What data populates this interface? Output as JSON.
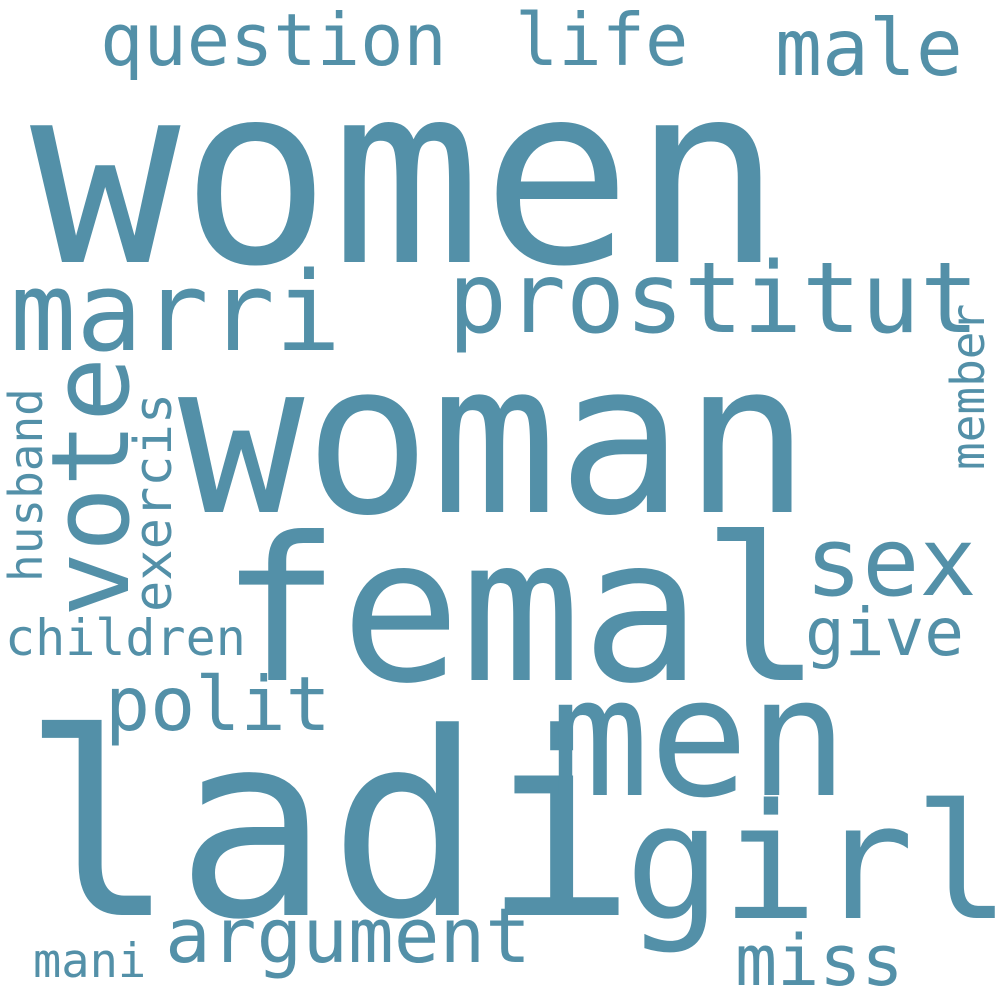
{
  "word_cloud": {
    "color": "#5390a8",
    "background": "#ffffff",
    "words": [
      "women",
      "woman",
      "ladi",
      "femal",
      "men",
      "girl",
      "marri",
      "vote",
      "prostitut",
      "sex",
      "question",
      "life",
      "male",
      "polit",
      "argument",
      "miss",
      "give",
      "children",
      "exercis",
      "husband",
      "member",
      "mani"
    ]
  }
}
